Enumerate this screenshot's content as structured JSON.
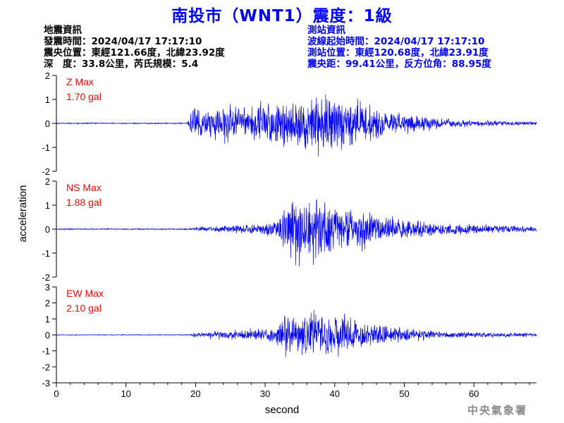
{
  "title": "南投市（WNT1）震度：1級",
  "earthquake_info": {
    "heading": "地震資訊",
    "origin_time": "發震時間：2024/04/17 17:17:10",
    "epicenter": "震央位置：東經121.66度，北緯23.92度",
    "depth_magnitude": "深　度：33.8公里，芮氏規模：5.4"
  },
  "station_info": {
    "heading": "測站資訊",
    "waveform_start": "波線起始時間：2024/04/17 17:17:10",
    "station_location": "測站位置：東經120.68度，北緯23.91度",
    "distance_azimuth": "震央距：99.41公里，反方位角：88.95度"
  },
  "credit": "中央氣象署",
  "colors": {
    "title": "#0000ff",
    "trace": "#0000ff",
    "max_label": "#ff0000",
    "axis": "#000000"
  },
  "chart_data": {
    "type": "line",
    "xlabel": "second",
    "ylabel": "acceleration",
    "xlim": [
      0,
      69
    ],
    "xticks": [
      0,
      10,
      20,
      30,
      40,
      50,
      60
    ],
    "onset_s": 19,
    "panels": [
      {
        "channel": "Z",
        "max_title": "Z Max",
        "max_value": "1.70 gal",
        "ylim": [
          -2,
          2
        ],
        "yticks": [
          -2,
          -1,
          0,
          1,
          2
        ],
        "envelope": [
          [
            0,
            0.03
          ],
          [
            18.8,
            0.03
          ],
          [
            19.5,
            0.8
          ],
          [
            22,
            0.9
          ],
          [
            26,
            0.85
          ],
          [
            30,
            1.0
          ],
          [
            32,
            1.2
          ],
          [
            34,
            1.3
          ],
          [
            36,
            1.5
          ],
          [
            38,
            1.6
          ],
          [
            40,
            1.4
          ],
          [
            43,
            1.1
          ],
          [
            46,
            0.8
          ],
          [
            50,
            0.5
          ],
          [
            55,
            0.25
          ],
          [
            60,
            0.15
          ],
          [
            69,
            0.1
          ]
        ]
      },
      {
        "channel": "NS",
        "max_title": "NS Max",
        "max_value": "1.88 gal",
        "ylim": [
          -2,
          2
        ],
        "yticks": [
          -2,
          -1,
          0,
          1,
          2
        ],
        "envelope": [
          [
            0,
            0.03
          ],
          [
            19,
            0.03
          ],
          [
            20,
            0.12
          ],
          [
            25,
            0.2
          ],
          [
            30,
            0.3
          ],
          [
            32,
            0.5
          ],
          [
            33,
            1.3
          ],
          [
            35,
            1.6
          ],
          [
            37,
            1.8
          ],
          [
            39,
            1.4
          ],
          [
            42,
            1.1
          ],
          [
            45,
            0.9
          ],
          [
            50,
            0.5
          ],
          [
            55,
            0.35
          ],
          [
            60,
            0.25
          ],
          [
            69,
            0.15
          ]
        ]
      },
      {
        "channel": "EW",
        "max_title": "EW Max",
        "max_value": "2.10 gal",
        "ylim": [
          -3,
          3
        ],
        "yticks": [
          -3,
          -2,
          -1,
          0,
          1,
          2,
          3
        ],
        "envelope": [
          [
            0,
            0.03
          ],
          [
            19,
            0.03
          ],
          [
            20,
            0.2
          ],
          [
            25,
            0.4
          ],
          [
            30,
            0.5
          ],
          [
            32,
            0.8
          ],
          [
            33,
            2.0
          ],
          [
            35,
            1.6
          ],
          [
            37,
            1.8
          ],
          [
            39,
            1.5
          ],
          [
            42,
            1.3
          ],
          [
            45,
            0.9
          ],
          [
            50,
            0.5
          ],
          [
            55,
            0.3
          ],
          [
            60,
            0.2
          ],
          [
            69,
            0.15
          ]
        ]
      }
    ]
  }
}
